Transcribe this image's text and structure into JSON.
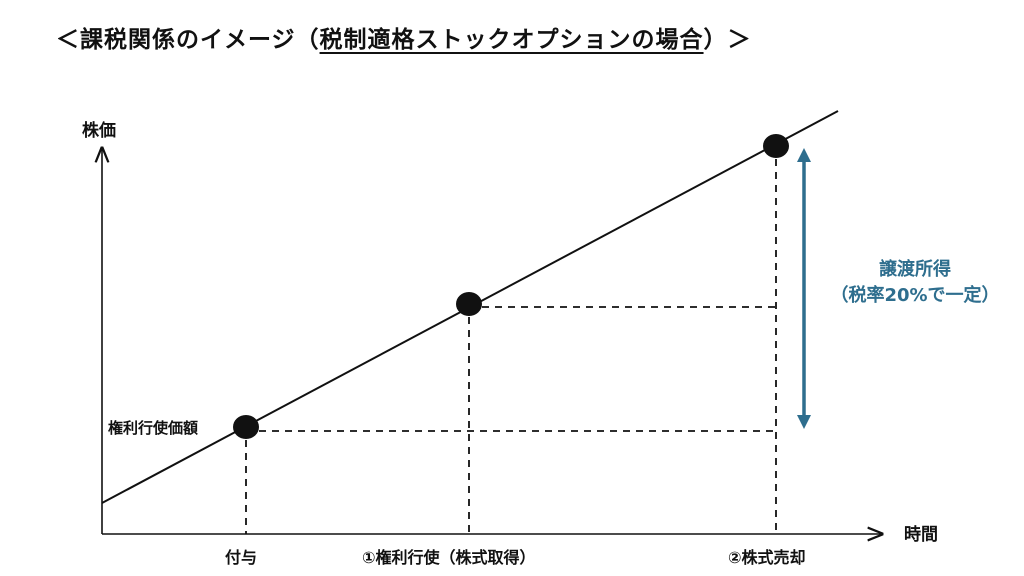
{
  "title": {
    "prefix": "＜課税関係のイメージ（",
    "underlined": "税制適格ストックオプションの場合",
    "suffix": "）＞"
  },
  "axis": {
    "y_label": "株価",
    "x_label": "時間"
  },
  "points": {
    "exercise_price_label": "権利行使価額",
    "x_ticks": [
      "付与",
      "①権利行使（株式取得）",
      "②株式売却"
    ]
  },
  "capital_gain": {
    "line1": "譲渡所得",
    "line2": "（税率20%で一定）"
  },
  "colors": {
    "line": "#111111",
    "accent": "#2e6e8e"
  }
}
